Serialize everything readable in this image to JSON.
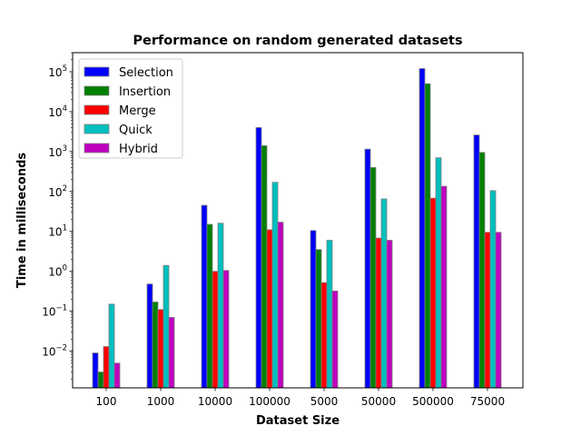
{
  "chart_data": {
    "type": "bar",
    "title": "Performance on random generated datasets",
    "xlabel": "Dataset Size",
    "ylabel": "Time in milliseconds",
    "yscale": "log",
    "ylim": [
      0.0012,
      300000
    ],
    "yticks": [
      {
        "base": "10",
        "exp": "−2",
        "value": 0.01
      },
      {
        "base": "10",
        "exp": "−1",
        "value": 0.1
      },
      {
        "base": "10",
        "exp": "0",
        "value": 1
      },
      {
        "base": "10",
        "exp": "1",
        "value": 10
      },
      {
        "base": "10",
        "exp": "2",
        "value": 100
      },
      {
        "base": "10",
        "exp": "3",
        "value": 1000
      },
      {
        "base": "10",
        "exp": "4",
        "value": 10000
      },
      {
        "base": "10",
        "exp": "5",
        "value": 100000
      }
    ],
    "categories": [
      "100",
      "1000",
      "10000",
      "100000",
      "5000",
      "50000",
      "500000",
      "75000"
    ],
    "legend_position": "upper-left",
    "grid": false,
    "series": [
      {
        "name": "Selection",
        "color": "#0000ff",
        "values": [
          0.009,
          0.48,
          45,
          4000,
          10.5,
          1150,
          120000,
          2600
        ]
      },
      {
        "name": "Insertion",
        "color": "#008000",
        "values": [
          0.003,
          0.17,
          15,
          1400,
          3.5,
          400,
          50000,
          950
        ]
      },
      {
        "name": "Merge",
        "color": "#ff0000",
        "values": [
          0.013,
          0.11,
          1.0,
          11,
          0.52,
          6.8,
          68,
          9.5
        ]
      },
      {
        "name": "Quick",
        "color": "#00bfbf",
        "values": [
          0.15,
          1.4,
          16,
          170,
          6.0,
          65,
          700,
          105
        ]
      },
      {
        "name": "Hybrid",
        "color": "#bf00bf",
        "values": [
          0.005,
          0.07,
          1.05,
          17,
          0.32,
          6.0,
          135,
          9.5
        ]
      }
    ]
  }
}
